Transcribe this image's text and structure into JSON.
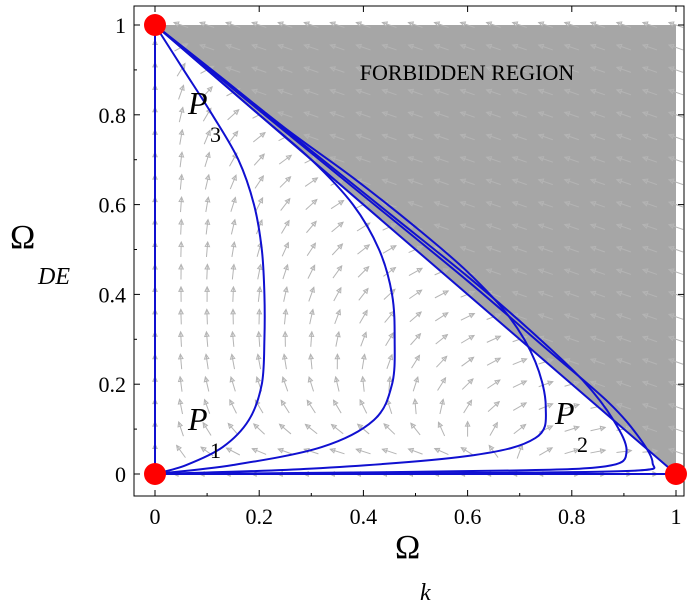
{
  "chart_data": {
    "type": "phase-portrait",
    "xlim": [
      0,
      1
    ],
    "ylim": [
      0,
      1
    ],
    "xlabel": {
      "symbol": "Ω",
      "subscript": "k"
    },
    "ylabel": {
      "symbol": "Ω",
      "subscript": "DE"
    },
    "xticks": [
      0,
      0.2,
      0.4,
      0.6,
      0.8,
      1
    ],
    "yticks": [
      0,
      0.2,
      0.4,
      0.6,
      0.8,
      1
    ],
    "xtick_labels": [
      "0",
      "0.2",
      "0.4",
      "0.6",
      "0.8",
      "1"
    ],
    "ytick_labels": [
      "0",
      "0.2",
      "0.4",
      "0.6",
      "0.8",
      "1"
    ],
    "region": {
      "label": "FORBIDDEN REGION",
      "color": "#a6a6a6",
      "boundary": [
        [
          0,
          1
        ],
        [
          1,
          1
        ],
        [
          1,
          0
        ]
      ]
    },
    "critical_points": [
      {
        "name": "P",
        "sub": "1",
        "x": 0,
        "y": 0
      },
      {
        "name": "P",
        "sub": "2",
        "x": 1,
        "y": 0
      },
      {
        "name": "P",
        "sub": "3",
        "x": 0,
        "y": 1
      }
    ],
    "point_color": "#ff0000",
    "trajectory_color": "#1010d0",
    "field_color": "#b4b4b4",
    "trajectories": [
      {
        "name": "t1",
        "points": [
          [
            0,
            1
          ],
          [
            0.055,
            0.9
          ],
          [
            0.11,
            0.8
          ],
          [
            0.16,
            0.7
          ],
          [
            0.19,
            0.6
          ],
          [
            0.205,
            0.5
          ],
          [
            0.21,
            0.4
          ],
          [
            0.21,
            0.3
          ],
          [
            0.205,
            0.2
          ],
          [
            0.18,
            0.12
          ],
          [
            0.13,
            0.06
          ],
          [
            0.06,
            0.02
          ],
          [
            0,
            0
          ]
        ]
      },
      {
        "name": "t2",
        "points": [
          [
            0,
            1
          ],
          [
            0.1,
            0.9
          ],
          [
            0.2,
            0.8
          ],
          [
            0.3,
            0.7
          ],
          [
            0.38,
            0.6
          ],
          [
            0.43,
            0.5
          ],
          [
            0.455,
            0.4
          ],
          [
            0.46,
            0.3
          ],
          [
            0.455,
            0.2
          ],
          [
            0.42,
            0.12
          ],
          [
            0.32,
            0.06
          ],
          [
            0.15,
            0.02
          ],
          [
            0,
            0
          ]
        ]
      },
      {
        "name": "t3",
        "points": [
          [
            0,
            1
          ],
          [
            0.12,
            0.89
          ],
          [
            0.25,
            0.77
          ],
          [
            0.38,
            0.66
          ],
          [
            0.5,
            0.55
          ],
          [
            0.6,
            0.45
          ],
          [
            0.68,
            0.35
          ],
          [
            0.73,
            0.25
          ],
          [
            0.75,
            0.15
          ],
          [
            0.73,
            0.08
          ],
          [
            0.6,
            0.04
          ],
          [
            0.3,
            0.012
          ],
          [
            0,
            0
          ]
        ]
      },
      {
        "name": "t4",
        "points": [
          [
            0,
            1
          ],
          [
            0.15,
            0.86
          ],
          [
            0.3,
            0.72
          ],
          [
            0.45,
            0.58
          ],
          [
            0.6,
            0.44
          ],
          [
            0.72,
            0.32
          ],
          [
            0.82,
            0.21
          ],
          [
            0.88,
            0.12
          ],
          [
            0.905,
            0.05
          ],
          [
            0.87,
            0.018
          ],
          [
            0.7,
            0.008
          ],
          [
            0.35,
            0.003
          ],
          [
            0,
            0
          ]
        ]
      },
      {
        "name": "t5",
        "points": [
          [
            0,
            1
          ],
          [
            0.2,
            0.81
          ],
          [
            0.4,
            0.62
          ],
          [
            0.6,
            0.43
          ],
          [
            0.75,
            0.28
          ],
          [
            0.87,
            0.16
          ],
          [
            0.93,
            0.08
          ],
          [
            0.955,
            0.025
          ],
          [
            0.93,
            0.008
          ],
          [
            0.7,
            0.003
          ],
          [
            0.35,
            0.001
          ],
          [
            0,
            0
          ]
        ]
      },
      {
        "name": "edge-left",
        "points": [
          [
            0,
            1
          ],
          [
            0,
            0
          ]
        ]
      },
      {
        "name": "edge-bottom",
        "points": [
          [
            0,
            0
          ],
          [
            1,
            0
          ]
        ]
      },
      {
        "name": "edge-diagonal",
        "points": [
          [
            0,
            1
          ],
          [
            1,
            0
          ]
        ]
      }
    ]
  }
}
